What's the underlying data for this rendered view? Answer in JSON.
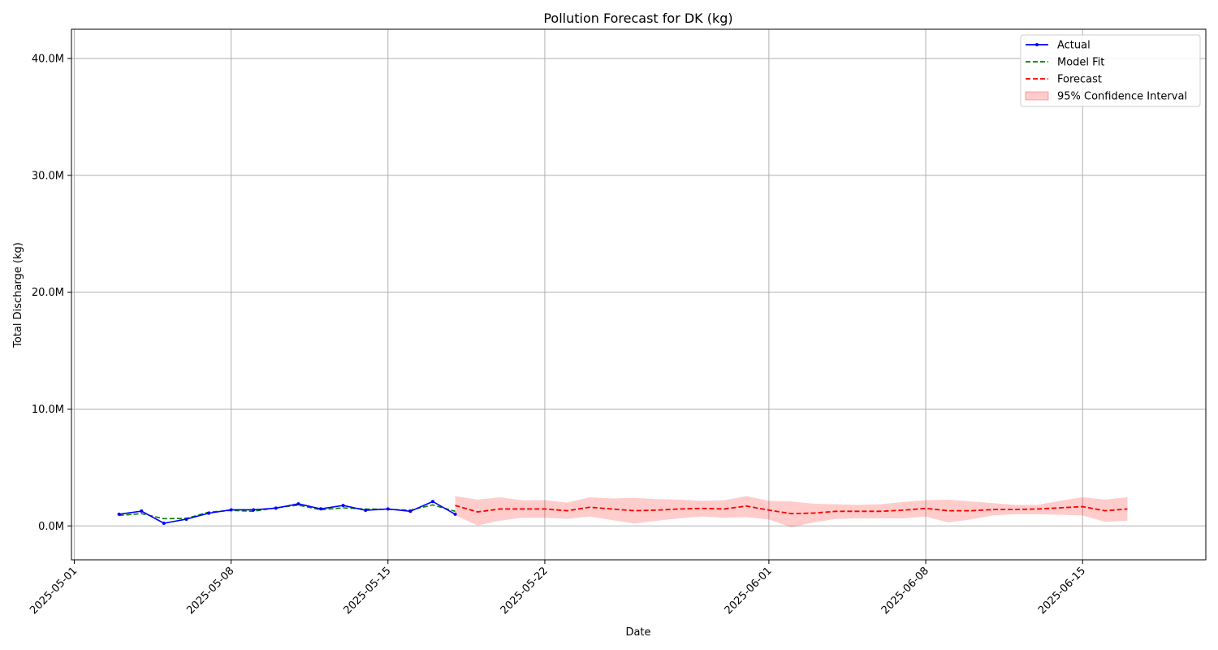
{
  "chart_data": {
    "type": "line",
    "title": "Pollution Forecast for DK (kg)",
    "xlabel": "Date",
    "ylabel": "Total Discharge (kg)",
    "xlim": [
      "2025-04-30T21:00",
      "2025-06-20T12:00"
    ],
    "ylim": [
      -2900000,
      42500000
    ],
    "x_ticks": [
      "2025-05-01",
      "2025-05-08",
      "2025-05-15",
      "2025-05-22",
      "2025-06-01",
      "2025-06-08",
      "2025-06-15"
    ],
    "y_ticks": [
      0,
      10000000,
      20000000,
      30000000,
      40000000
    ],
    "y_tick_labels": [
      "0.0M",
      "10.0M",
      "20.0M",
      "30.0M",
      "40.0M"
    ],
    "grid": true,
    "legend_position": "upper right",
    "legend": [
      "Actual",
      "Model Fit",
      "Forecast",
      "95% Confidence Interval"
    ],
    "colors": {
      "actual": "#0000ff",
      "model_fit": "#008000",
      "forecast": "#ff0000",
      "ci": "#ff0000"
    },
    "series": [
      {
        "name": "Actual",
        "x": [
          "2025-05-03",
          "2025-05-04",
          "2025-05-05",
          "2025-05-06",
          "2025-05-07",
          "2025-05-08",
          "2025-05-09",
          "2025-05-10",
          "2025-05-11",
          "2025-05-12",
          "2025-05-13",
          "2025-05-14",
          "2025-05-15",
          "2025-05-16",
          "2025-05-17",
          "2025-05-18"
        ],
        "values": [
          1000000,
          1270000,
          230000,
          580000,
          1090000,
          1380000,
          1380000,
          1520000,
          1890000,
          1460000,
          1750000,
          1340000,
          1450000,
          1250000,
          2090000,
          1000000
        ]
      },
      {
        "name": "Model Fit",
        "x": [
          "2025-05-03",
          "2025-05-04",
          "2025-05-05",
          "2025-05-06",
          "2025-05-07",
          "2025-05-08",
          "2025-05-09",
          "2025-05-10",
          "2025-05-11",
          "2025-05-12",
          "2025-05-13",
          "2025-05-14",
          "2025-05-15",
          "2025-05-16",
          "2025-05-17",
          "2025-05-18"
        ],
        "values": [
          900000,
          1050000,
          620000,
          640000,
          1180000,
          1330000,
          1250000,
          1550000,
          1780000,
          1380000,
          1550000,
          1450000,
          1420000,
          1350000,
          1800000,
          1250000
        ]
      },
      {
        "name": "Forecast",
        "x": [
          "2025-05-18",
          "2025-05-19",
          "2025-05-20",
          "2025-05-21",
          "2025-05-22",
          "2025-05-23",
          "2025-05-24",
          "2025-05-25",
          "2025-05-26",
          "2025-05-27",
          "2025-05-28",
          "2025-05-29",
          "2025-05-30",
          "2025-05-31",
          "2025-06-01",
          "2025-06-02",
          "2025-06-03",
          "2025-06-04",
          "2025-06-05",
          "2025-06-06",
          "2025-06-07",
          "2025-06-08",
          "2025-06-09",
          "2025-06-10",
          "2025-06-11",
          "2025-06-12",
          "2025-06-13",
          "2025-06-14",
          "2025-06-15",
          "2025-06-16",
          "2025-06-17"
        ],
        "values": [
          1750000,
          1200000,
          1450000,
          1450000,
          1450000,
          1300000,
          1600000,
          1450000,
          1300000,
          1350000,
          1450000,
          1500000,
          1450000,
          1700000,
          1350000,
          1050000,
          1100000,
          1250000,
          1250000,
          1250000,
          1350000,
          1500000,
          1300000,
          1300000,
          1400000,
          1400000,
          1450000,
          1550000,
          1650000,
          1300000,
          1450000
        ]
      }
    ],
    "confidence_interval": {
      "name": "95% Confidence Interval",
      "x": [
        "2025-05-18",
        "2025-05-19",
        "2025-05-20",
        "2025-05-21",
        "2025-05-22",
        "2025-05-23",
        "2025-05-24",
        "2025-05-25",
        "2025-05-26",
        "2025-05-27",
        "2025-05-28",
        "2025-05-29",
        "2025-05-30",
        "2025-05-31",
        "2025-06-01",
        "2025-06-02",
        "2025-06-03",
        "2025-06-04",
        "2025-06-05",
        "2025-06-06",
        "2025-06-07",
        "2025-06-08",
        "2025-06-09",
        "2025-06-10",
        "2025-06-11",
        "2025-06-12",
        "2025-06-13",
        "2025-06-14",
        "2025-06-15",
        "2025-06-16",
        "2025-06-17"
      ],
      "lower": [
        900000,
        50000,
        450000,
        700000,
        700000,
        600000,
        800000,
        500000,
        200000,
        450000,
        650000,
        800000,
        700000,
        750000,
        550000,
        -100000,
        300000,
        600000,
        650000,
        650000,
        650000,
        800000,
        300000,
        550000,
        900000,
        1000000,
        1000000,
        950000,
        900000,
        350000,
        450000
      ],
      "upper": [
        2550000,
        2250000,
        2450000,
        2200000,
        2200000,
        2000000,
        2450000,
        2350000,
        2400000,
        2300000,
        2250000,
        2150000,
        2200000,
        2550000,
        2150000,
        2100000,
        1900000,
        1850000,
        1800000,
        1850000,
        2050000,
        2200000,
        2250000,
        2100000,
        1950000,
        1800000,
        1800000,
        2150000,
        2450000,
        2250000,
        2450000
      ]
    }
  }
}
